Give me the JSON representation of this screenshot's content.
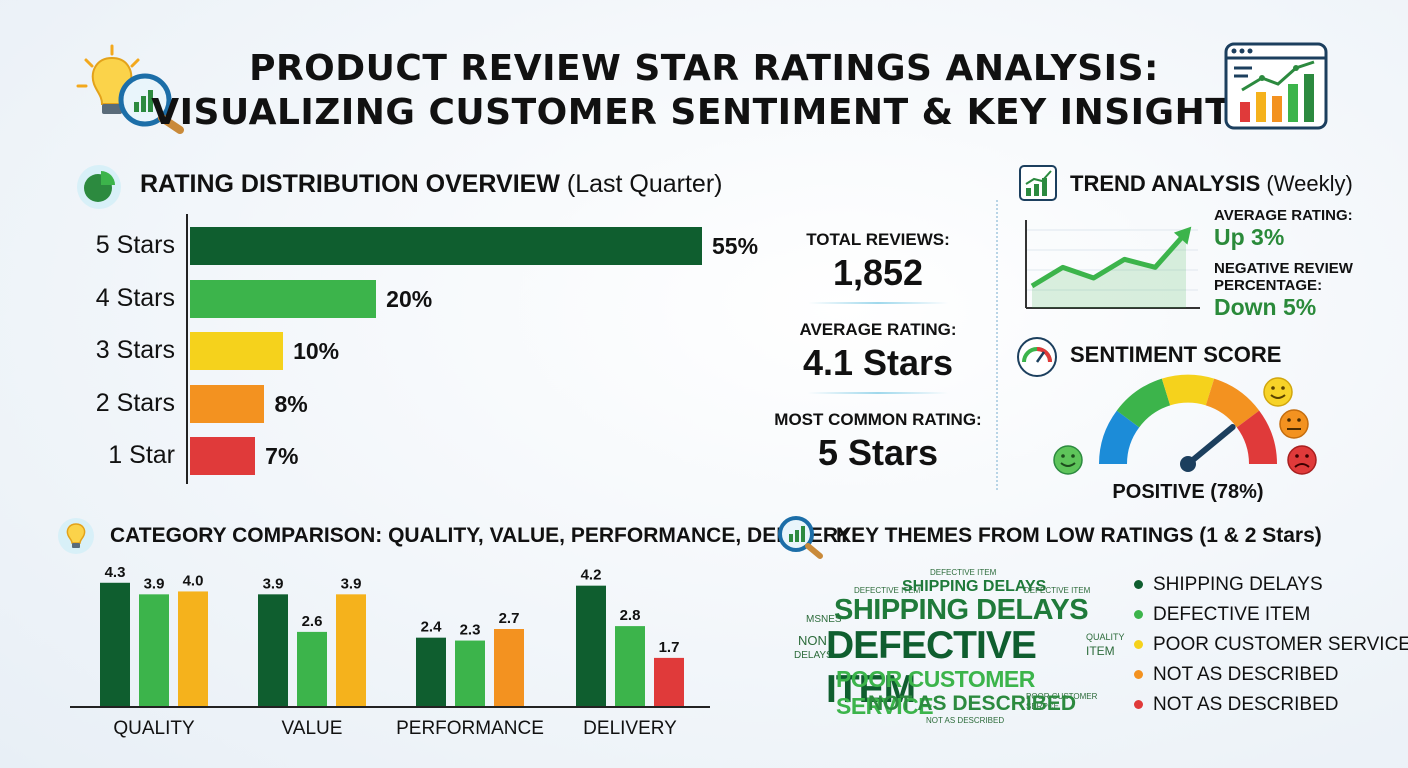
{
  "title": {
    "line1": "PRODUCT REVIEW STAR RATINGS ANALYSIS:",
    "line2": "VISUALIZING CUSTOMER SENTIMENT & KEY INSIGHTS"
  },
  "distribution": {
    "heading": "RATING DISTRIBUTION OVERVIEW",
    "subheading": "(Last Quarter)"
  },
  "stats": {
    "total_label": "TOTAL REVIEWS:",
    "total_value": "1,852",
    "avg_label": "AVERAGE RATING:",
    "avg_value": "4.1 Stars",
    "common_label": "MOST COMMON RATING:",
    "common_value": "5 Stars"
  },
  "trend": {
    "heading": "TREND ANALYSIS",
    "subheading": "(Weekly)",
    "avg_label": "AVERAGE RATING:",
    "avg_value": "Up 3%",
    "neg_label_1": "NEGATIVE REVIEW",
    "neg_label_2": "PERCENTAGE:",
    "neg_value": "Down 5%"
  },
  "sentiment": {
    "heading": "SENTIMENT SCORE",
    "label": "POSITIVE (78%)",
    "score": 78
  },
  "category": {
    "heading": "CATEGORY COMPARISON: QUALITY, VALUE, PERFORMANCE, DELIVERY"
  },
  "themes": {
    "heading": "KEY THEMES FROM LOW RATINGS (1 & 2 Stars)",
    "legend": [
      {
        "label": "SHIPPING DELAYS",
        "color": "#0f5e2f"
      },
      {
        "label": "DEFECTIVE ITEM",
        "color": "#3cb44b"
      },
      {
        "label": "POOR CUSTOMER SERVICE",
        "color": "#f5d21c"
      },
      {
        "label": "NOT AS DESCRIBED",
        "color": "#f39220"
      },
      {
        "label": "NOT AS DESCRIBED",
        "color": "#e03a3a"
      }
    ],
    "cloud": {
      "w1": "SHIPPING DELAYS",
      "w2": "DEFECTIVE ITEM",
      "w3": "POOR CUSTOMER SERVICE",
      "w4": "NOT AS DESCRIBED",
      "w5": "SHIPPING DELAYS",
      "s1": "DEFECTIVE ITEM",
      "s2": "DEFECTIVE ITEM",
      "s3": "DEFECTIVE ITEM",
      "s4": "NOT AS DESCRIBED",
      "s5": "MSNES",
      "s6": "NON",
      "s7": "DELAYS",
      "s8": "QUALITY",
      "s9": "ITEM",
      "s10": "POOR CUSTOMER",
      "s11": "SERPCE"
    }
  },
  "colors": {
    "dark_green": "#0f5e2f",
    "green": "#3cb44b",
    "yellow": "#f5d21c",
    "orange": "#f39220",
    "red": "#e03a3a"
  },
  "chart_data": [
    {
      "type": "bar",
      "orientation": "horizontal",
      "title": "RATING DISTRIBUTION OVERVIEW (Last Quarter)",
      "categories": [
        "5 Stars",
        "4 Stars",
        "3 Stars",
        "2 Stars",
        "1 Star"
      ],
      "values": [
        55,
        20,
        10,
        8,
        7
      ],
      "value_labels": [
        "55%",
        "20%",
        "10%",
        "8%",
        "7%"
      ],
      "colors": [
        "#0f5e2f",
        "#3cb44b",
        "#f5d21c",
        "#f39220",
        "#e03a3a"
      ],
      "xlim": [
        0,
        55
      ]
    },
    {
      "type": "bar",
      "title": "CATEGORY COMPARISON: QUALITY, VALUE, PERFORMANCE, DELIVERY",
      "categories": [
        "QUALITY",
        "VALUE",
        "PERFORMANCE",
        "DELIVERY"
      ],
      "groups": [
        {
          "values": [
            4.3,
            3.9,
            4.0
          ],
          "labels": [
            "4.3",
            "3.9",
            "4.0"
          ],
          "colors": [
            "#0f5e2f",
            "#3cb44b",
            "#f5b21c"
          ]
        },
        {
          "values": [
            3.9,
            2.6,
            3.9
          ],
          "labels": [
            "3.9",
            "2.6",
            "3.9"
          ],
          "colors": [
            "#0f5e2f",
            "#3cb44b",
            "#f5b21c"
          ]
        },
        {
          "values": [
            2.4,
            2.3,
            2.7
          ],
          "labels": [
            "2.4",
            "2.3",
            "2.7"
          ],
          "colors": [
            "#0f5e2f",
            "#3cb44b",
            "#f39220"
          ]
        },
        {
          "values": [
            4.2,
            2.8,
            1.7
          ],
          "labels": [
            "4.2",
            "2.8",
            "1.7"
          ],
          "colors": [
            "#0f5e2f",
            "#3cb44b",
            "#e03a3a"
          ]
        }
      ],
      "ylim": [
        0,
        4.5
      ]
    },
    {
      "type": "line",
      "title": "TREND ANALYSIS (Weekly)",
      "x": [
        1,
        2,
        3,
        4,
        5,
        6
      ],
      "y": [
        1.2,
        2.6,
        1.8,
        3.2,
        2.6,
        5.2
      ],
      "ylim": [
        0,
        6
      ]
    }
  ]
}
